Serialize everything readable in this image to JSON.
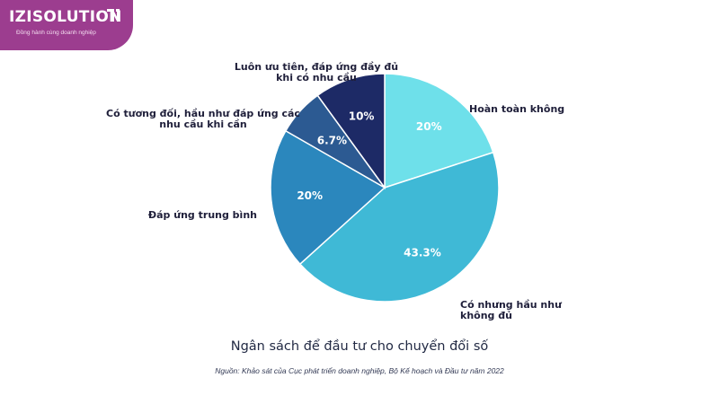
{
  "brand": {
    "name": "IZISOLUTION",
    "tagline": "Đồng hành cùng doanh nghiệp",
    "color": "#9c3d8f"
  },
  "chart_data": {
    "type": "pie",
    "title": "Ngân sách để đầu tư cho chuyển đổi số",
    "source": "Nguồn: Khảo sát của Cục phát triển doanh nghiệp, Bộ Kế hoạch và Đầu tư năm 2022",
    "slices": [
      {
        "label": [
          "Hoàn toàn không"
        ],
        "value": 20,
        "value_label": "20%",
        "color": "#6ee0ea"
      },
      {
        "label": [
          "Có nhưng hầu như",
          "không đủ"
        ],
        "value": 43.3,
        "value_label": "43.3%",
        "color": "#3fb9d6"
      },
      {
        "label": [
          "Đáp ứng trung bình"
        ],
        "value": 20,
        "value_label": "20%",
        "color": "#2b87bd"
      },
      {
        "label": [
          "Có tương đối, hầu như đáp ứng các",
          "nhu cầu khi cần"
        ],
        "value": 6.7,
        "value_label": "6.7%",
        "color": "#2c5a92"
      },
      {
        "label": [
          "Luôn ưu tiên, đáp ứng đầy đủ",
          "khi có nhu cầu"
        ],
        "value": 10,
        "value_label": "10%",
        "color": "#1d2a66"
      }
    ]
  }
}
